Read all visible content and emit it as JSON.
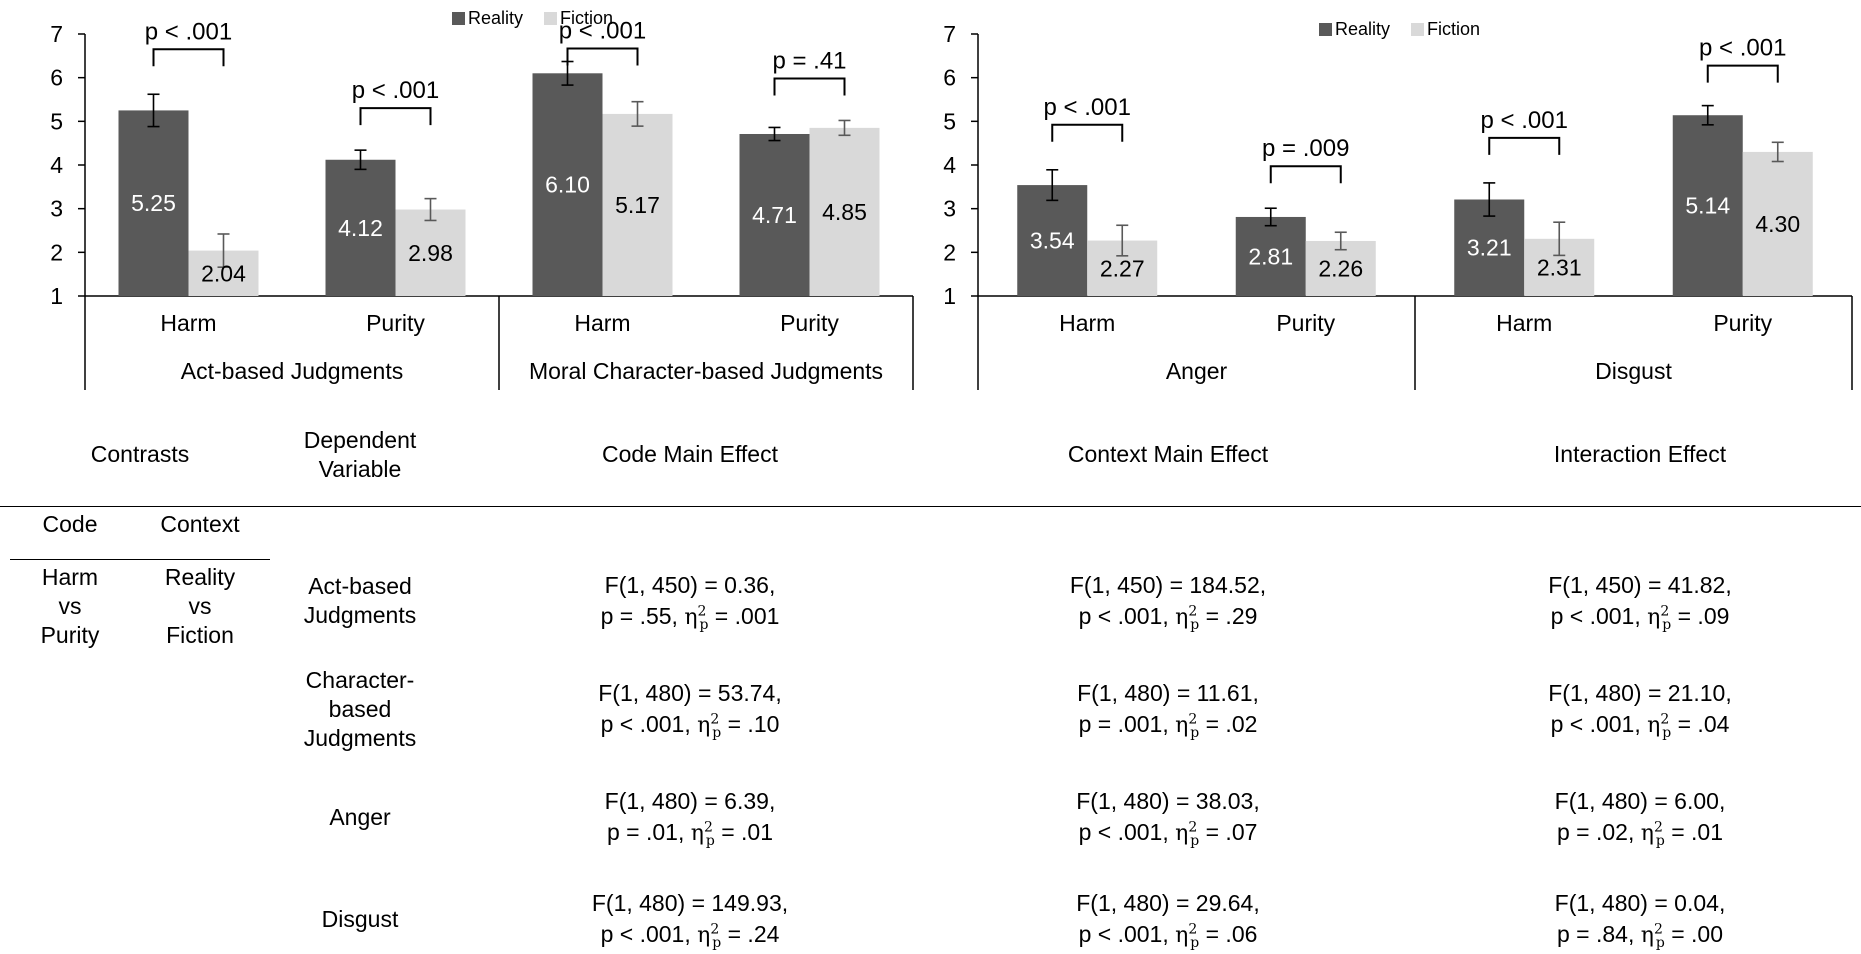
{
  "colors": {
    "reality": "#595959",
    "fiction": "#d9d9d9",
    "axis": "#000000"
  },
  "legend": {
    "reality": "Reality",
    "fiction": "Fiction"
  },
  "chart_data": [
    {
      "type": "bar",
      "ylim": [
        1,
        7
      ],
      "yticks": [
        "1",
        "2",
        "3",
        "4",
        "5",
        "6",
        "7"
      ],
      "categories": [
        "Harm",
        "Purity",
        "Harm",
        "Purity"
      ],
      "groups": [
        "Act-based Judgments",
        "Moral Character-based Judgments"
      ],
      "series": [
        {
          "name": "Reality",
          "values": [
            5.25,
            4.12,
            6.1,
            4.71
          ],
          "labels": [
            "5.25",
            "4.12",
            "6.10",
            "4.71"
          ],
          "err": [
            0.37,
            0.22,
            0.27,
            0.15
          ]
        },
        {
          "name": "Fiction",
          "values": [
            2.04,
            2.98,
            5.17,
            4.85
          ],
          "labels": [
            "2.04",
            "2.98",
            "5.17",
            "4.85"
          ],
          "err": [
            0.38,
            0.25,
            0.28,
            0.17
          ]
        }
      ],
      "annotations": [
        "p < .001",
        "p < .001",
        "p < .001",
        "p = .41"
      ]
    },
    {
      "type": "bar",
      "ylim": [
        1,
        7
      ],
      "yticks": [
        "1",
        "2",
        "3",
        "4",
        "5",
        "6",
        "7"
      ],
      "categories": [
        "Harm",
        "Purity",
        "Harm",
        "Purity"
      ],
      "groups": [
        "Anger",
        "Disgust"
      ],
      "series": [
        {
          "name": "Reality",
          "values": [
            3.54,
            2.81,
            3.21,
            5.14
          ],
          "labels": [
            "3.54",
            "2.81",
            "3.21",
            "5.14"
          ],
          "err": [
            0.35,
            0.2,
            0.38,
            0.22
          ]
        },
        {
          "name": "Fiction",
          "values": [
            2.27,
            2.26,
            2.31,
            4.3
          ],
          "labels": [
            "2.27",
            "2.26",
            "2.31",
            "4.30"
          ],
          "err": [
            0.35,
            0.2,
            0.38,
            0.22
          ]
        }
      ],
      "annotations": [
        "p < .001",
        "p = .009",
        "p < .001",
        "p < .001"
      ]
    }
  ],
  "table": {
    "header": {
      "contrasts": "Contrasts",
      "dv_line1": "Dependent",
      "dv_line2": "Variable",
      "code_main": "Code Main Effect",
      "context_main": "Context Main Effect",
      "interaction": "Interaction Effect",
      "code": "Code",
      "context": "Context"
    },
    "contrast_code": [
      "Harm",
      "vs",
      "Purity"
    ],
    "contrast_context": [
      "Reality",
      "vs",
      "Fiction"
    ],
    "rows": [
      {
        "dv": [
          "Act-based",
          "Judgments"
        ],
        "code": {
          "f": "F(1, 450) = 0.36,",
          "p": "p = .55, ",
          "eta": "= .001"
        },
        "context": {
          "f": "F(1, 450) = 184.52,",
          "p": "p < .001, ",
          "eta": "= .29"
        },
        "interaction": {
          "f": "F(1, 450) = 41.82,",
          "p": "p < .001, ",
          "eta": "= .09"
        }
      },
      {
        "dv": [
          "Character-",
          "based",
          "Judgments"
        ],
        "code": {
          "f": "F(1, 480) = 53.74,",
          "p": "p < .001, ",
          "eta": "= .10"
        },
        "context": {
          "f": "F(1, 480) = 11.61,",
          "p": "p = .001, ",
          "eta": "= .02"
        },
        "interaction": {
          "f": "F(1, 480) = 21.10,",
          "p": "p < .001, ",
          "eta": "= .04"
        }
      },
      {
        "dv": [
          "Anger"
        ],
        "code": {
          "f": "F(1, 480) = 6.39,",
          "p": "p = .01, ",
          "eta": "= .01"
        },
        "context": {
          "f": "F(1, 480) = 38.03,",
          "p": "p < .001, ",
          "eta": "= .07"
        },
        "interaction": {
          "f": "F(1, 480) = 6.00,",
          "p": "p = .02, ",
          "eta": "= .01"
        }
      },
      {
        "dv": [
          "Disgust"
        ],
        "code": {
          "f": "F(1, 480) = 149.93,",
          "p": "p < .001, ",
          "eta": "= .24"
        },
        "context": {
          "f": "F(1, 480) = 29.64,",
          "p": "p < .001, ",
          "eta": "= .06"
        },
        "interaction": {
          "f": "F(1, 480) = 0.04,",
          "p": "p = .84, ",
          "eta": "= .00"
        }
      }
    ]
  }
}
